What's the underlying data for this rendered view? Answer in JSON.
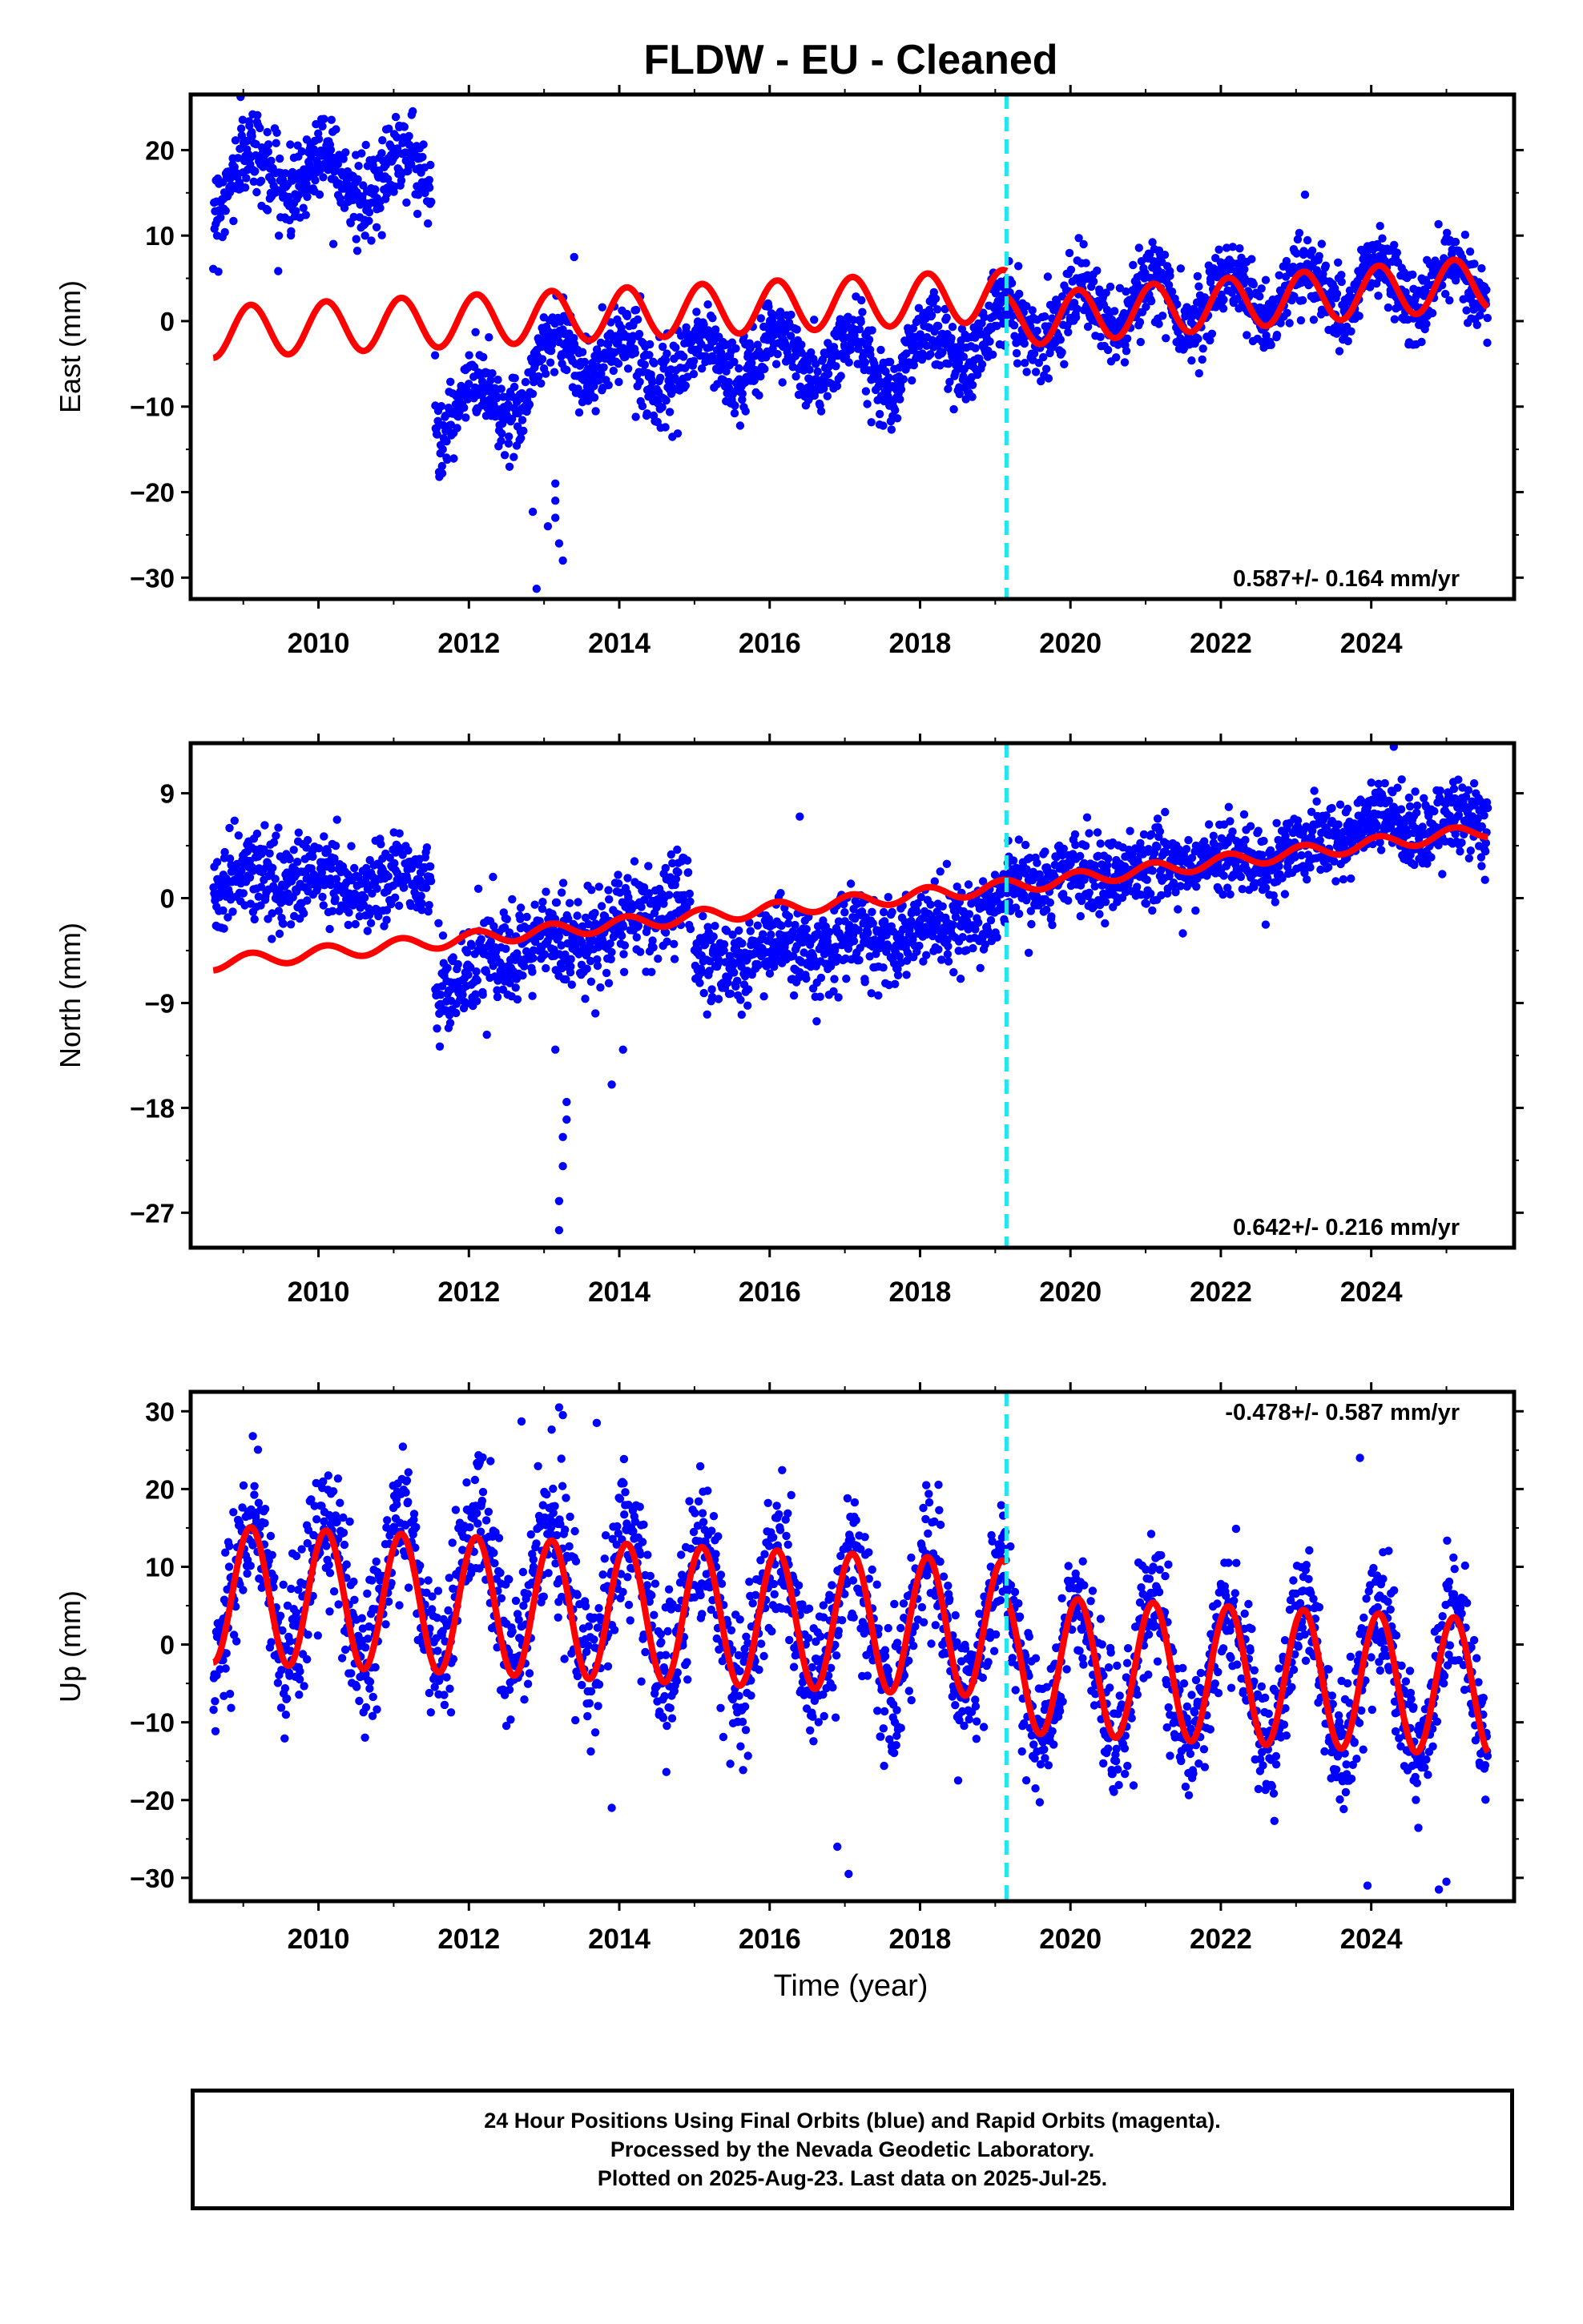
{
  "title": "FLDW  - EU - Cleaned",
  "xlabel": "Time (year)",
  "colors": {
    "data": "#0000ff",
    "model": "#ff0000",
    "break_line": "#22e5f0",
    "frame": "#000000"
  },
  "caption": [
    "24 Hour Positions Using Final Orbits (blue) and Rapid Orbits (magenta).",
    "Processed by the Nevada Geodetic Laboratory.",
    "Plotted on 2025-Aug-23. Last data on 2025-Jul-25."
  ],
  "chart_data": [
    {
      "type": "scatter",
      "ylabel": "East (mm)",
      "velocity_label": "0.587+/- 0.164 mm/yr",
      "xlim": [
        2008.3,
        2025.9
      ],
      "ylim": [
        -32.5,
        26.5
      ],
      "yticks": [
        20,
        10,
        0,
        -10,
        -20,
        -30
      ],
      "ytick_labels": [
        "20",
        "10",
        "0",
        "−10",
        "−20",
        "−30"
      ],
      "xticks": [
        2010,
        2012,
        2014,
        2016,
        2018,
        2020,
        2022,
        2024
      ],
      "xtick_labels": [
        "2010",
        "2012",
        "2014",
        "2016",
        "2018",
        "2020",
        "2022",
        "2024"
      ],
      "break_year": 2019.15,
      "model_trend": {
        "x": [
          2008.6,
          2019.15,
          2019.15,
          2025.55
        ],
        "y": [
          -1.3,
          3.0,
          0.0,
          4.5
        ]
      },
      "seasonal_amplitude": 3.0,
      "data_segments": [
        {
          "x": [
            2008.6,
            2009.5,
            2010.6,
            2011.5
          ],
          "y": [
            16.0,
            18.0,
            16.5,
            18.0
          ],
          "amplitude": 3.0,
          "scatter": 2.5
        },
        {
          "x": [
            2011.55,
            2012.5,
            2013.3,
            2014.5,
            2016.0,
            2017.5,
            2019.15
          ],
          "y": [
            -11.0,
            -9.0,
            -3.0,
            -5.5,
            -4.0,
            -5.0,
            -1.0
          ],
          "amplitude": 3.0,
          "scatter": 2.2
        },
        {
          "x": [
            2019.15,
            2021.0,
            2023.0,
            2025.55
          ],
          "y": [
            0.0,
            2.0,
            3.5,
            4.5
          ],
          "amplitude": 3.0,
          "scatter": 2.2
        }
      ],
      "outliers": {
        "x": [
          2012.9,
          2013.05,
          2013.15,
          2013.15,
          2013.15,
          2013.2,
          2013.25,
          2012.85,
          2011.55,
          2013.4
        ],
        "y": [
          -31.3,
          -24.0,
          -19.0,
          -21.0,
          -23.0,
          -26.0,
          -28.0,
          -22.3,
          -4.0,
          7.5
        ]
      }
    },
    {
      "type": "scatter",
      "ylabel": "North (mm)",
      "velocity_label": "0.642+/- 0.216 mm/yr",
      "xlim": [
        2008.3,
        2025.9
      ],
      "ylim": [
        -30.0,
        13.3
      ],
      "yticks": [
        9,
        0,
        -9,
        -18,
        -27
      ],
      "ytick_labels": [
        "9",
        "0",
        "−9",
        "−18",
        "−27"
      ],
      "xticks": [
        2010,
        2012,
        2014,
        2016,
        2018,
        2020,
        2022,
        2024
      ],
      "xtick_labels": [
        "2010",
        "2012",
        "2014",
        "2016",
        "2018",
        "2020",
        "2022",
        "2024"
      ],
      "break_year": 2019.15,
      "model_trend": {
        "x": [
          2008.6,
          2019.15,
          2025.55
        ],
        "y": [
          -5.6,
          1.0,
          5.8
        ]
      },
      "seasonal_amplitude": 0.6,
      "data_segments": [
        {
          "x": [
            2008.6,
            2009.5,
            2010.5,
            2011.5
          ],
          "y": [
            1.0,
            2.0,
            1.0,
            2.0
          ],
          "amplitude": 0.8,
          "scatter": 1.8
        },
        {
          "x": [
            2011.55,
            2012.5,
            2013.5,
            2014.0,
            2014.95
          ],
          "y": [
            -8.0,
            -5.0,
            -3.5,
            -2.5,
            1.0
          ],
          "amplitude": 0.8,
          "scatter": 2.0
        },
        {
          "x": [
            2015.0,
            2016.0,
            2017.0,
            2018.0,
            2019.15
          ],
          "y": [
            -6.0,
            -4.5,
            -4.0,
            -3.0,
            -1.0
          ],
          "amplitude": 0.8,
          "scatter": 1.8
        },
        {
          "x": [
            2019.15,
            2021.0,
            2023.0,
            2024.0,
            2025.55
          ],
          "y": [
            1.0,
            2.5,
            4.0,
            6.0,
            6.5
          ],
          "amplitude": 0.8,
          "scatter": 1.6
        }
      ],
      "outliers": {
        "x": [
          2013.2,
          2013.2,
          2013.25,
          2013.25,
          2013.3,
          2013.3,
          2013.15,
          2014.05,
          2013.9,
          2016.4,
          2024.3
        ],
        "y": [
          -28.5,
          -26.0,
          -23.0,
          -20.5,
          -19.0,
          -17.5,
          -13.0,
          -13.0,
          -16.0,
          7.0,
          13.0
        ]
      }
    },
    {
      "type": "scatter",
      "ylabel": "Up (mm)",
      "velocity_label": "-0.478+/- 0.587 mm/yr",
      "xlim": [
        2008.3,
        2025.9
      ],
      "ylim": [
        -33.0,
        32.5
      ],
      "yticks": [
        30,
        20,
        10,
        0,
        -10,
        -20,
        -30
      ],
      "ytick_labels": [
        "30",
        "20",
        "10",
        "0",
        "−10",
        "−20",
        "−30"
      ],
      "xticks": [
        2010,
        2012,
        2014,
        2016,
        2018,
        2020,
        2022,
        2024
      ],
      "xtick_labels": [
        "2010",
        "2012",
        "2014",
        "2016",
        "2018",
        "2020",
        "2022",
        "2024"
      ],
      "break_year": 2019.15,
      "model_trend": {
        "x": [
          2008.6,
          2019.15,
          2019.15,
          2025.55
        ],
        "y": [
          6.5,
          2.0,
          -2.5,
          -5.5
        ]
      },
      "seasonal_amplitude": 8.8,
      "data_segments": [
        {
          "x": [
            2008.6,
            2012.5,
            2013.5,
            2015.0,
            2019.15
          ],
          "y": [
            6.5,
            8.0,
            7.0,
            4.0,
            2.0
          ],
          "amplitude": 9.0,
          "scatter": 4.5
        },
        {
          "x": [
            2019.15,
            2022.0,
            2025.55
          ],
          "y": [
            -2.5,
            -4.0,
            -5.5
          ],
          "amplitude": 9.0,
          "scatter": 4.0
        }
      ],
      "outliers": {
        "x": [
          2013.2,
          2013.25,
          2013.7,
          2012.7,
          2023.85,
          2013.9,
          2017.05,
          2016.9,
          2024.9,
          2025.0,
          2023.95
        ],
        "y": [
          30.5,
          29.5,
          28.5,
          28.7,
          24.0,
          -21.0,
          -29.5,
          -26.0,
          -31.5,
          -30.5,
          -31.0
        ]
      }
    }
  ]
}
